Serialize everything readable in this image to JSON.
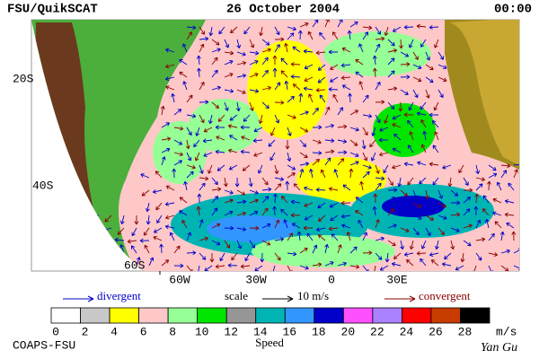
{
  "header": {
    "left": "FSU/QuikSCAT",
    "center": "26 October 2004",
    "right": "00:00"
  },
  "map": {
    "lat_labels": [
      "20S",
      "40S",
      "60S"
    ],
    "lon_labels": [
      "60W",
      "30W",
      "0",
      "30E"
    ]
  },
  "legend": {
    "divergent": "divergent",
    "scale": "scale",
    "scale_value": "10 m/s",
    "convergent": "convergent"
  },
  "colorbar": {
    "colors": [
      "#ffffff",
      "#c8c8c8",
      "#ffff00",
      "#ffc8c8",
      "#96ff96",
      "#00e600",
      "#969696",
      "#00b4b4",
      "#3296ff",
      "#0000c8",
      "#ff50ff",
      "#aa82ff",
      "#ff0000",
      "#c83c00",
      "#000000"
    ],
    "ticks": [
      0,
      2,
      4,
      6,
      8,
      10,
      12,
      14,
      16,
      18,
      20,
      22,
      24,
      26,
      28
    ],
    "unit": "m/s",
    "label": "Speed"
  },
  "footer": {
    "left": "COAPS-FSU",
    "signature": "Yan Gu"
  }
}
